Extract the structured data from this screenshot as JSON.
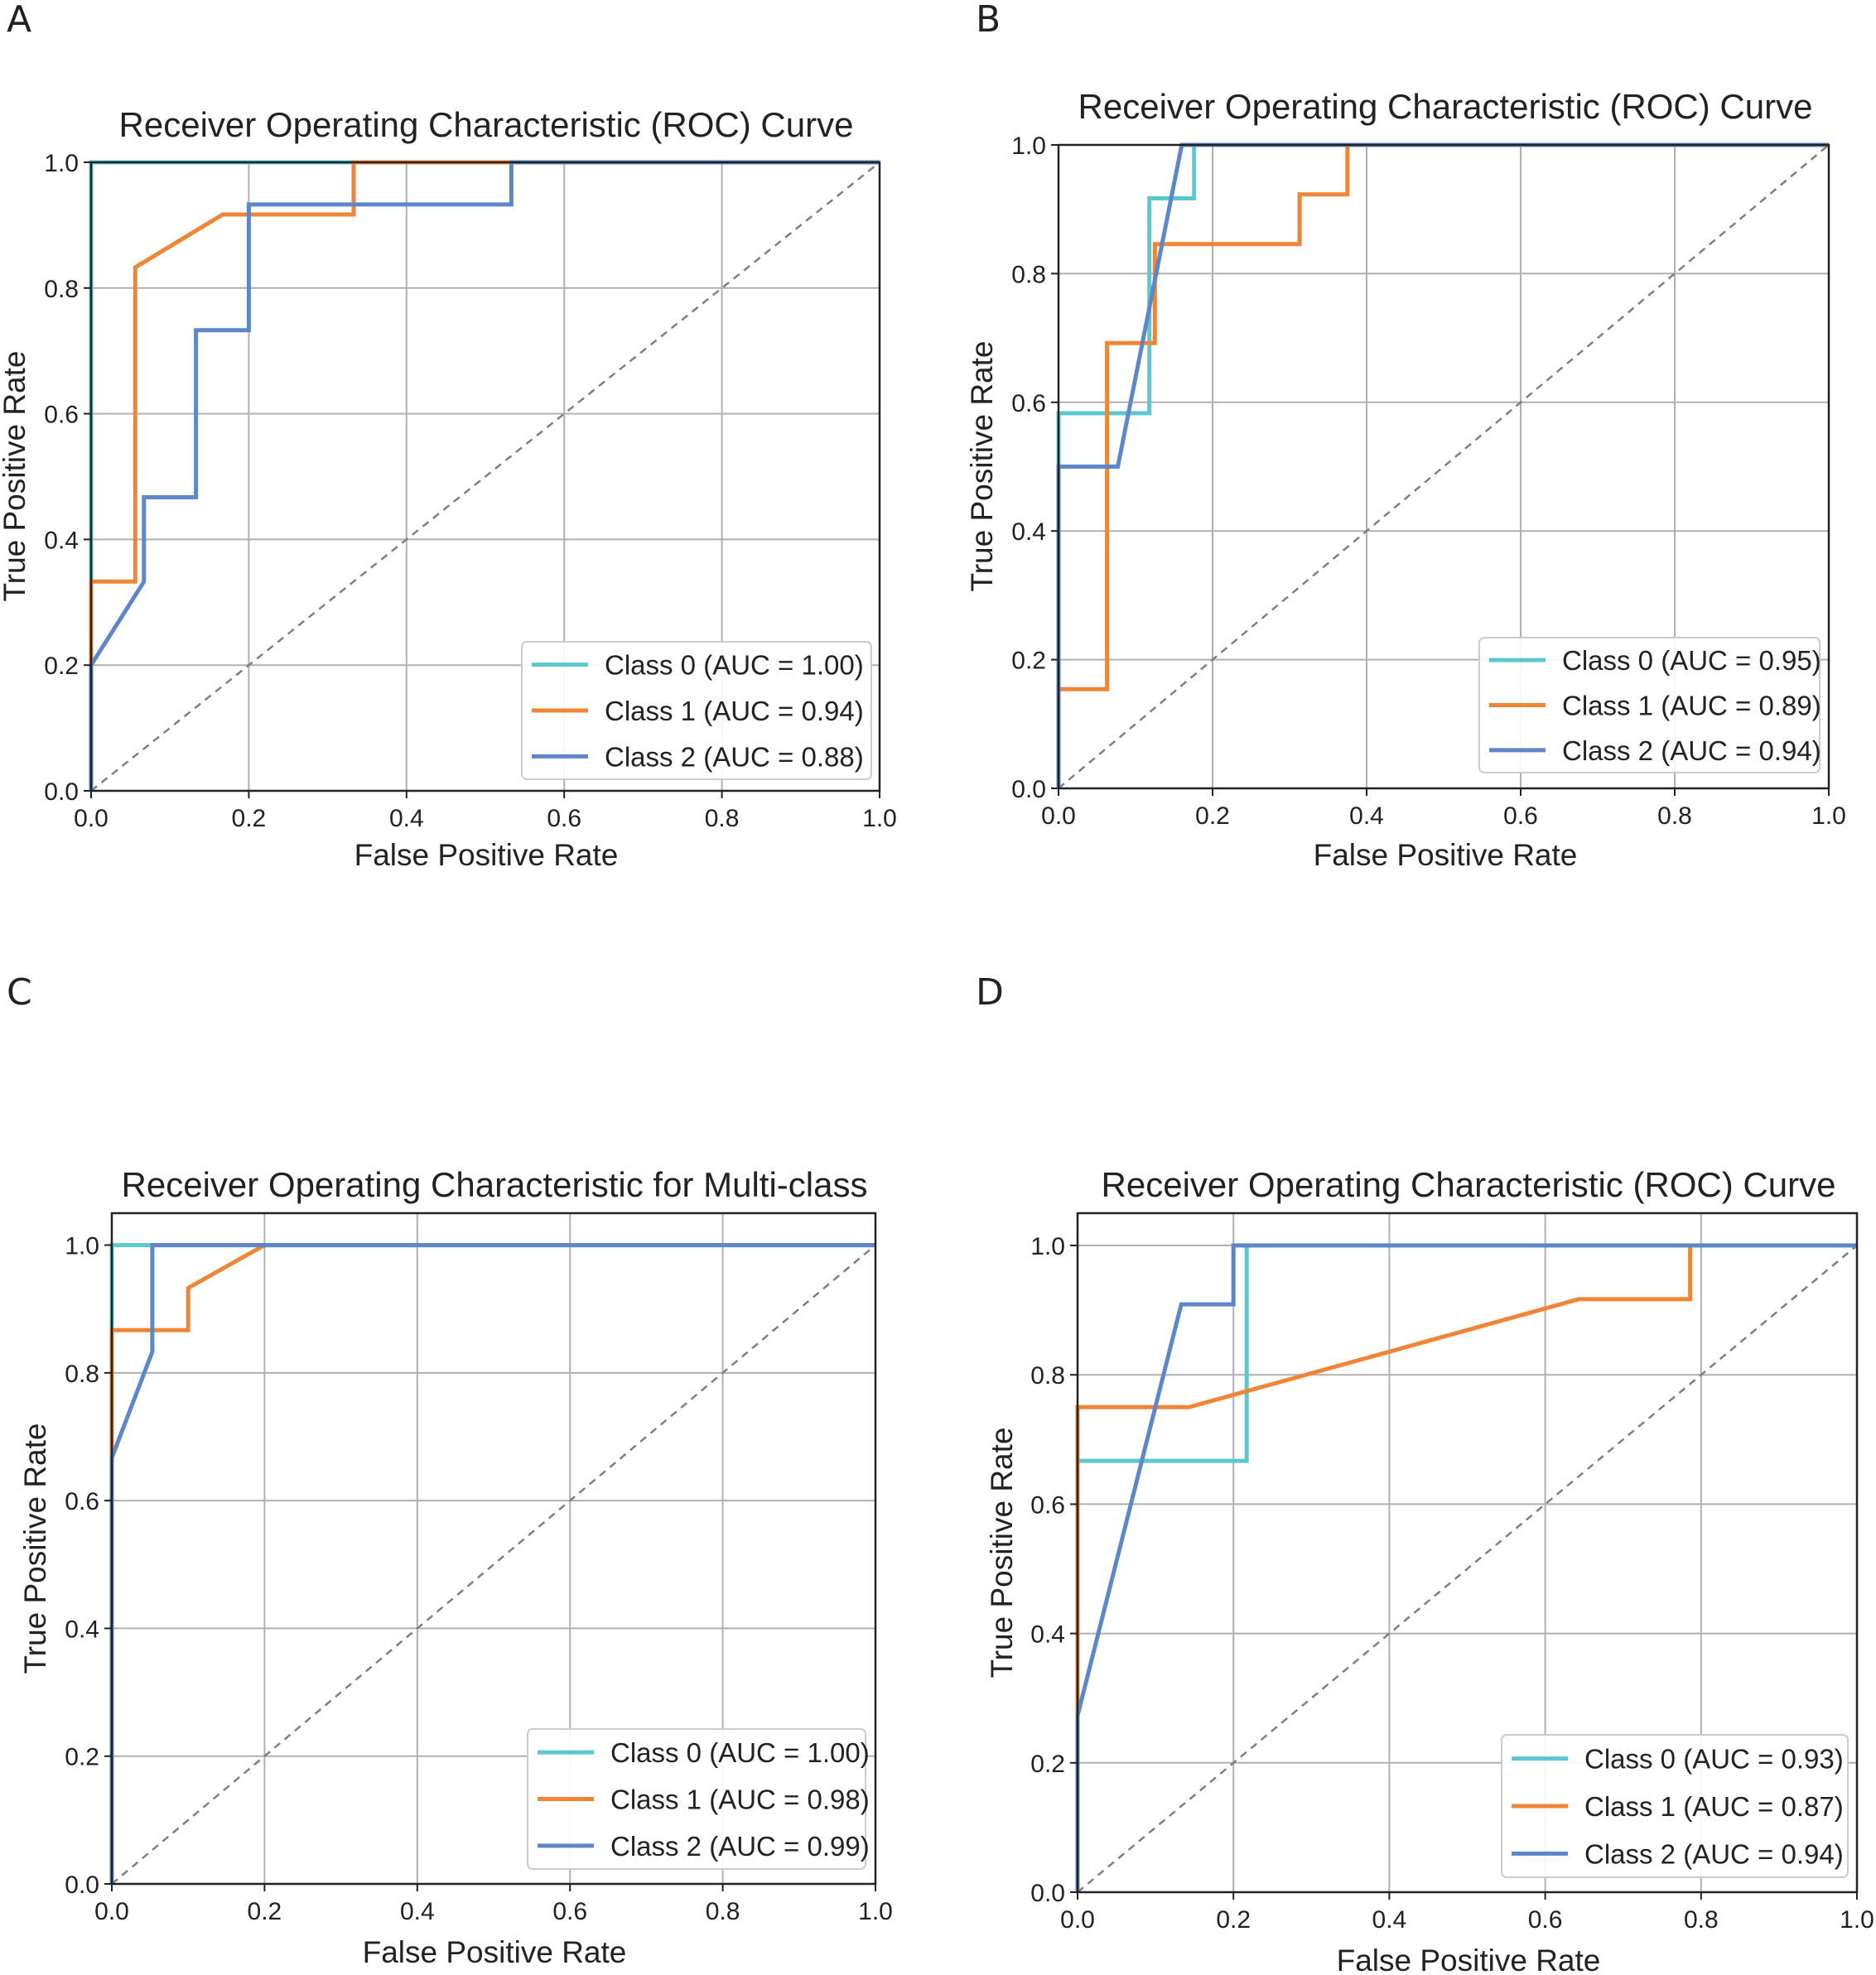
{
  "colors": {
    "class0": "#5bc8d0",
    "class1": "#ef8536",
    "class2": "#5d87c8",
    "diagonal": "#808080"
  },
  "chart_data": [
    {
      "panel": "A",
      "type": "line",
      "title": "Receiver Operating Characteristic (ROC) Curve",
      "xlabel": "False Positive Rate",
      "ylabel": "True Positive Rate",
      "xlim": [
        0,
        1
      ],
      "ylim": [
        0,
        1
      ],
      "xticks": [
        "0.0",
        "0.2",
        "0.4",
        "0.6",
        "0.8",
        "1.0"
      ],
      "yticks": [
        "0.0",
        "0.2",
        "0.4",
        "0.6",
        "0.8",
        "1.0"
      ],
      "grid": true,
      "legend_position": "lower-right",
      "series": [
        {
          "name": "Class 0 (AUC = 1.00)",
          "color_key": "class0",
          "x": [
            0,
            0,
            1
          ],
          "y": [
            0,
            1,
            1
          ]
        },
        {
          "name": "Class 1 (AUC = 0.94)",
          "color_key": "class1",
          "x": [
            0,
            0,
            0.056,
            0.056,
            0.167,
            0.333,
            0.333,
            1
          ],
          "y": [
            0,
            0.333,
            0.333,
            0.833,
            0.917,
            0.917,
            1,
            1
          ]
        },
        {
          "name": "Class 2 (AUC = 0.88)",
          "color_key": "class2",
          "x": [
            0,
            0,
            0.067,
            0.067,
            0.133,
            0.133,
            0.2,
            0.2,
            0.533,
            0.533,
            1
          ],
          "y": [
            0,
            0.2,
            0.333,
            0.467,
            0.467,
            0.733,
            0.733,
            0.933,
            0.933,
            1,
            1
          ]
        }
      ]
    },
    {
      "panel": "B",
      "type": "line",
      "title": "Receiver Operating Characteristic (ROC) Curve",
      "xlabel": "False Positive Rate",
      "ylabel": "True Positive Rate",
      "xlim": [
        0,
        1
      ],
      "ylim": [
        0,
        1
      ],
      "xticks": [
        "0.0",
        "0.2",
        "0.4",
        "0.6",
        "0.8",
        "1.0"
      ],
      "yticks": [
        "0.0",
        "0.2",
        "0.4",
        "0.6",
        "0.8",
        "1.0"
      ],
      "grid": true,
      "legend_position": "lower-right",
      "series": [
        {
          "name": "Class 0 (AUC = 0.95)",
          "color_key": "class0",
          "x": [
            0,
            0,
            0.118,
            0.118,
            0.176,
            0.176,
            1
          ],
          "y": [
            0,
            0.583,
            0.583,
            0.917,
            0.917,
            1,
            1
          ]
        },
        {
          "name": "Class 1 (AUC = 0.89)",
          "color_key": "class1",
          "x": [
            0,
            0,
            0.063,
            0.063,
            0.125,
            0.125,
            0.313,
            0.313,
            0.375,
            0.375,
            1
          ],
          "y": [
            0,
            0.154,
            0.154,
            0.692,
            0.692,
            0.846,
            0.846,
            0.923,
            0.923,
            1,
            1
          ]
        },
        {
          "name": "Class 2 (AUC = 0.94)",
          "color_key": "class2",
          "x": [
            0,
            0,
            0.077,
            0.16,
            1
          ],
          "y": [
            0,
            0.5,
            0.5,
            1,
            1
          ]
        }
      ]
    },
    {
      "panel": "C",
      "type": "line",
      "title": "Receiver Operating Characteristic for Multi-class",
      "xlabel": "False Positive Rate",
      "ylabel": "True Positive Rate",
      "xlim": [
        0,
        1
      ],
      "ylim": [
        0,
        1.05
      ],
      "xticks": [
        "0.0",
        "0.2",
        "0.4",
        "0.6",
        "0.8",
        "1.0"
      ],
      "yticks": [
        "0.0",
        "0.2",
        "0.4",
        "0.6",
        "0.8",
        "1.0"
      ],
      "grid": true,
      "legend_position": "lower-right",
      "series": [
        {
          "name": "Class 0 (AUC = 1.00)",
          "color_key": "class0",
          "x": [
            0,
            0,
            1
          ],
          "y": [
            0,
            1,
            1
          ]
        },
        {
          "name": "Class 1 (AUC = 0.98)",
          "color_key": "class1",
          "x": [
            0,
            0,
            0.1,
            0.1,
            0.2,
            1
          ],
          "y": [
            0,
            0.867,
            0.867,
            0.933,
            1,
            1
          ]
        },
        {
          "name": "Class 2 (AUC = 0.99)",
          "color_key": "class2",
          "x": [
            0,
            0,
            0.053,
            0.053,
            1
          ],
          "y": [
            0,
            0.667,
            0.833,
            1,
            1
          ]
        }
      ]
    },
    {
      "panel": "D",
      "type": "line",
      "title": "Receiver Operating Characteristic (ROC) Curve",
      "xlabel": "False Positive Rate",
      "ylabel": "True Positive Rate",
      "xlim": [
        0,
        1
      ],
      "ylim": [
        0,
        1.05
      ],
      "xticks": [
        "0.0",
        "0.2",
        "0.4",
        "0.6",
        "0.8",
        "1.0"
      ],
      "yticks": [
        "0.0",
        "0.2",
        "0.4",
        "0.6",
        "0.8",
        "1.0"
      ],
      "grid": true,
      "legend_position": "lower-right",
      "series": [
        {
          "name": "Class 0 (AUC = 0.93)",
          "color_key": "class0",
          "x": [
            0,
            0,
            0.217,
            0.217,
            1
          ],
          "y": [
            0,
            0.667,
            0.667,
            1,
            1
          ]
        },
        {
          "name": "Class 1 (AUC = 0.87)",
          "color_key": "class1",
          "x": [
            0,
            0,
            0.143,
            0.643,
            0.786,
            0.786,
            1
          ],
          "y": [
            0,
            0.75,
            0.75,
            0.917,
            0.917,
            1,
            1
          ]
        },
        {
          "name": "Class 2 (AUC = 0.94)",
          "color_key": "class2",
          "x": [
            0,
            0,
            0.133,
            0.2,
            0.2,
            1
          ],
          "y": [
            0,
            0.273,
            0.909,
            0.909,
            1,
            1
          ]
        }
      ]
    }
  ]
}
